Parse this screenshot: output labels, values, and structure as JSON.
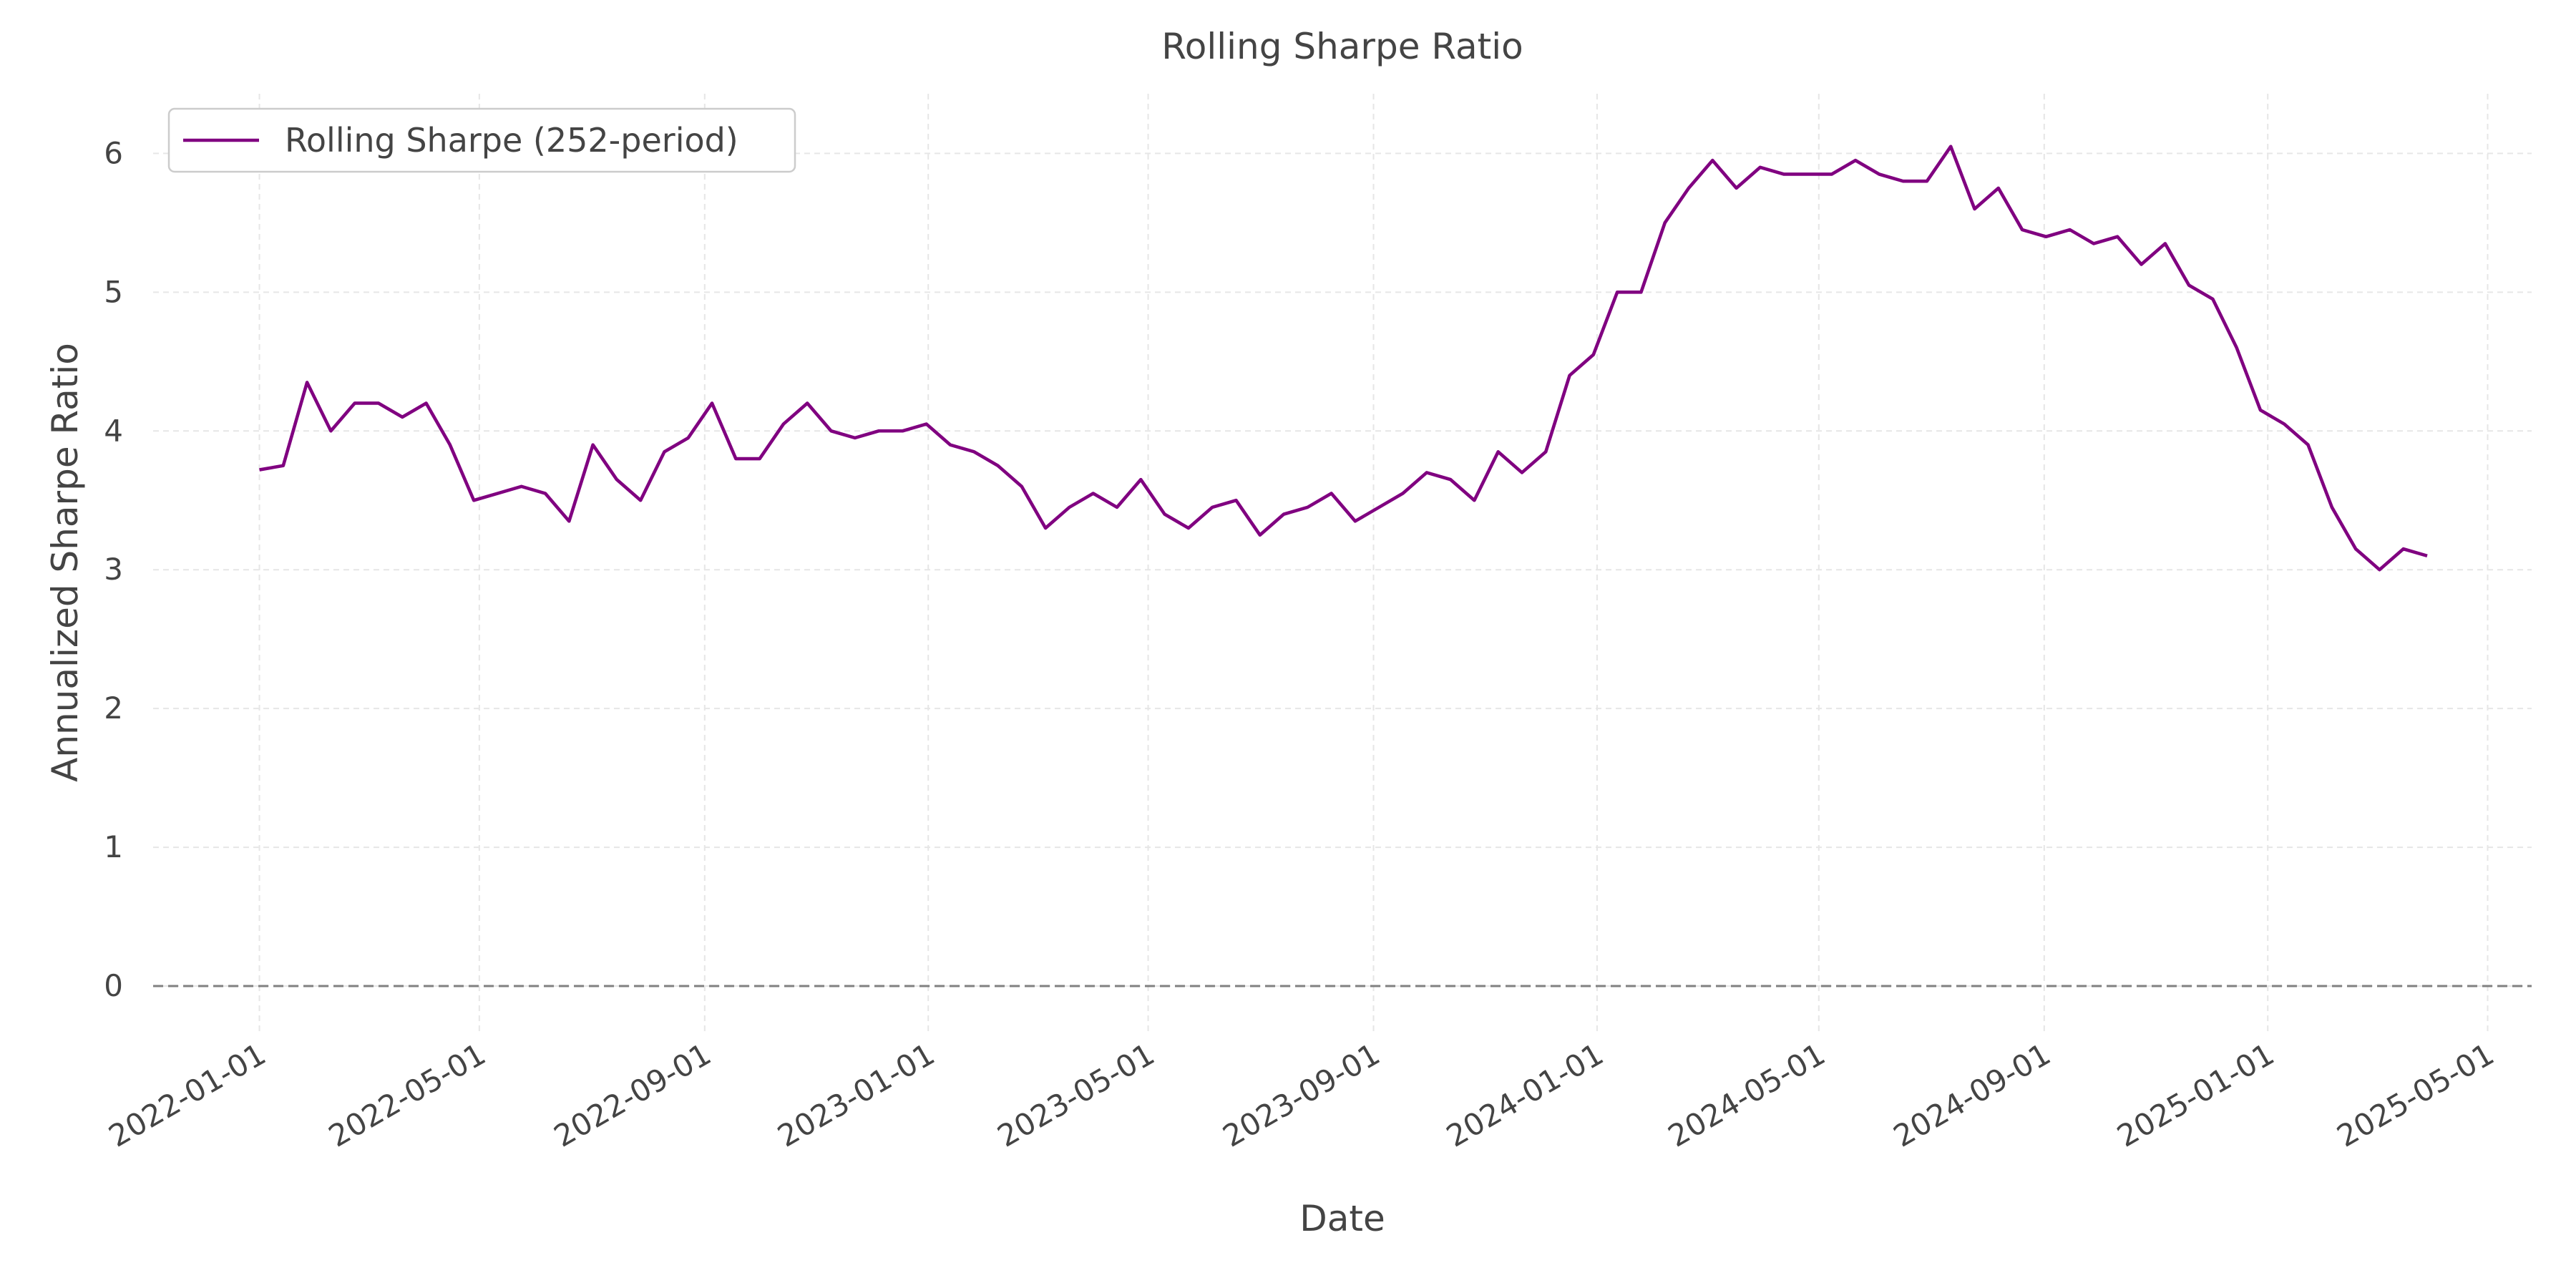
{
  "chart_data": {
    "type": "line",
    "title": "Rolling Sharpe Ratio",
    "x_label": "Date",
    "y_label": "Annualized Sharpe Ratio",
    "x": [
      "2022-01-01",
      "2022-01-14",
      "2022-01-27",
      "2022-02-09",
      "2022-02-22",
      "2022-03-07",
      "2022-03-20",
      "2022-04-02",
      "2022-04-15",
      "2022-04-28",
      "2022-05-11",
      "2022-05-24",
      "2022-06-06",
      "2022-06-19",
      "2022-07-02",
      "2022-07-15",
      "2022-07-28",
      "2022-08-10",
      "2022-08-23",
      "2022-09-05",
      "2022-09-18",
      "2022-10-01",
      "2022-10-14",
      "2022-10-27",
      "2022-11-09",
      "2022-11-22",
      "2022-12-05",
      "2022-12-18",
      "2022-12-31",
      "2023-01-13",
      "2023-01-26",
      "2023-02-08",
      "2023-02-21",
      "2023-03-06",
      "2023-03-19",
      "2023-04-01",
      "2023-04-14",
      "2023-04-27",
      "2023-05-10",
      "2023-05-23",
      "2023-06-05",
      "2023-06-18",
      "2023-07-01",
      "2023-07-14",
      "2023-07-27",
      "2023-08-09",
      "2023-08-22",
      "2023-09-04",
      "2023-09-17",
      "2023-09-30",
      "2023-10-13",
      "2023-10-26",
      "2023-11-08",
      "2023-11-21",
      "2023-12-04",
      "2023-12-17",
      "2023-12-30",
      "2024-01-12",
      "2024-01-25",
      "2024-02-07",
      "2024-02-20",
      "2024-03-04",
      "2024-03-17",
      "2024-03-30",
      "2024-04-12",
      "2024-04-25",
      "2024-05-08",
      "2024-05-21",
      "2024-06-03",
      "2024-06-16",
      "2024-06-29",
      "2024-07-12",
      "2024-07-25",
      "2024-08-07",
      "2024-08-20",
      "2024-09-02",
      "2024-09-15",
      "2024-09-28",
      "2024-10-11",
      "2024-10-24",
      "2024-11-06",
      "2024-11-19",
      "2024-12-02",
      "2024-12-15",
      "2024-12-28",
      "2025-01-10",
      "2025-01-23",
      "2025-02-05",
      "2025-02-18",
      "2025-03-03",
      "2025-03-16",
      "2025-03-29"
    ],
    "series": [
      {
        "name": "Rolling Sharpe (252-period)",
        "color": "#800080",
        "values": [
          3.72,
          3.75,
          4.35,
          4.0,
          4.2,
          4.2,
          4.1,
          4.2,
          3.9,
          3.5,
          3.55,
          3.6,
          3.55,
          3.35,
          3.9,
          3.65,
          3.5,
          3.85,
          3.95,
          4.2,
          3.8,
          3.8,
          4.05,
          4.2,
          4.0,
          3.95,
          4.0,
          4.0,
          4.05,
          3.9,
          3.85,
          3.75,
          3.6,
          3.3,
          3.45,
          3.55,
          3.45,
          3.65,
          3.4,
          3.3,
          3.45,
          3.5,
          3.25,
          3.4,
          3.45,
          3.55,
          3.35,
          3.45,
          3.55,
          3.7,
          3.65,
          3.5,
          3.85,
          3.7,
          3.85,
          4.4,
          4.55,
          5.0,
          5.0,
          5.5,
          5.75,
          5.95,
          5.75,
          5.9,
          5.85,
          5.85,
          5.85,
          5.95,
          5.85,
          5.8,
          5.8,
          6.05,
          5.6,
          5.75,
          5.45,
          5.4,
          5.45,
          5.35,
          5.4,
          5.2,
          5.35,
          5.05,
          4.95,
          4.6,
          4.15,
          4.05,
          3.9,
          3.45,
          3.15,
          3.0,
          3.15,
          3.1
        ]
      }
    ],
    "xlim": [
      "2021-11-04",
      "2025-05-25"
    ],
    "xticks": [
      "2022-01-01",
      "2022-05-01",
      "2022-09-01",
      "2023-01-01",
      "2023-05-01",
      "2023-09-01",
      "2024-01-01",
      "2024-05-01",
      "2024-09-01",
      "2025-01-01",
      "2025-05-01"
    ],
    "ylim": [
      -0.33,
      6.43
    ],
    "yticks": [
      0,
      1,
      2,
      3,
      4,
      5,
      6
    ],
    "hline": 0,
    "grid": true,
    "legend": "upper-left"
  }
}
